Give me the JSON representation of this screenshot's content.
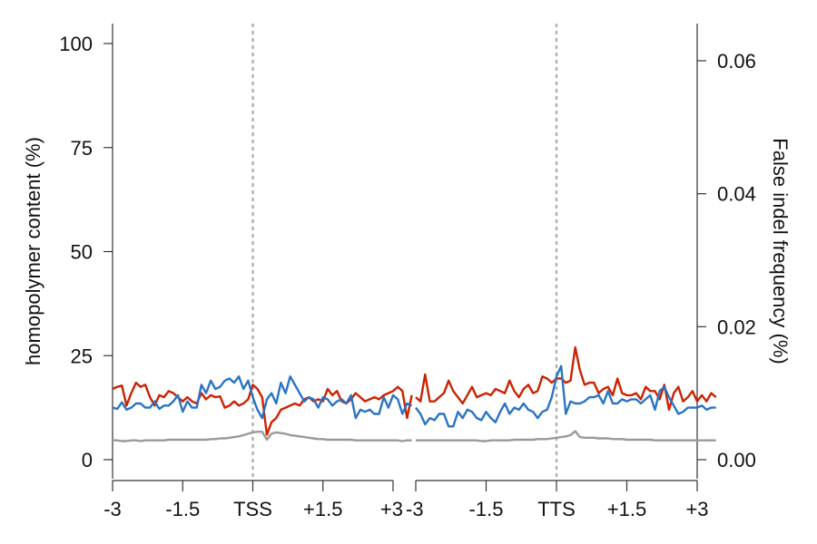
{
  "chart_data": {
    "type": "line",
    "ylabel_left": "homopolymer content (%)",
    "ylabel_right": "False indel frequency (%)",
    "ylim_left": [
      0,
      100
    ],
    "yticks_left": [
      0,
      25,
      50,
      75,
      100
    ],
    "ylim_right": [
      0,
      0.06
    ],
    "yticks_right": [
      "0.00",
      "0.02",
      "0.04",
      "0.06"
    ],
    "grid": false,
    "legend": "none",
    "colors": {
      "red": "#cc2200",
      "blue": "#2a74c4",
      "gray": "#999999",
      "marker": "#b0b0b0"
    },
    "panels": [
      {
        "name": "TSS",
        "xlim": [
          -3,
          3
        ],
        "xticks": [
          -3,
          -1.5,
          0,
          1.5,
          3
        ],
        "xtick_labels": [
          "-3",
          "-1.5",
          "TSS",
          "+1.5",
          "+3"
        ],
        "marker": 0,
        "series": [
          {
            "color": "red",
            "axis": "left",
            "x_start": -3,
            "x_step": 0.1,
            "values": [
              17,
              17.5,
              17.8,
              13,
              16,
              18.5,
              17.5,
              18,
              15,
              13,
              15.5,
              15,
              16.5,
              16,
              15,
              14,
              15,
              14,
              13.5,
              16,
              14.5,
              15.5,
              15,
              15.2,
              12.5,
              13,
              14,
              13,
              13.5,
              14.5,
              18,
              17,
              15,
              6,
              9,
              10,
              12,
              12.5,
              13,
              13.5,
              13,
              14.5,
              15,
              14,
              14.5,
              14,
              17,
              15.5,
              16.5,
              14,
              13.5,
              14.5,
              16,
              15,
              14,
              14.5,
              15,
              14.5,
              15.5,
              16,
              16.5,
              17.5,
              16.5,
              10,
              15.5
            ]
          },
          {
            "color": "blue",
            "axis": "left",
            "x_start": -3,
            "x_step": 0.1,
            "values": [
              12.5,
              12.2,
              13.8,
              12,
              12.5,
              13.5,
              13.5,
              12.5,
              12.5,
              14,
              12.2,
              13,
              13,
              14,
              15.5,
              11.5,
              14,
              12.5,
              12.5,
              18,
              16,
              19,
              17,
              17.5,
              19,
              19.5,
              18.5,
              20,
              17,
              19,
              15,
              12,
              10,
              14.5,
              16,
              13.5,
              18.5,
              16,
              20,
              18,
              16,
              14,
              15,
              14.5,
              12.5,
              15,
              14.5,
              13,
              14,
              14.5,
              13.5,
              15.5,
              10,
              12,
              11.5,
              12,
              11,
              11,
              15,
              12.5,
              15.5,
              14.5,
              11,
              13.5,
              13
            ]
          },
          {
            "color": "gray",
            "axis": "right",
            "x_start": -3,
            "x_step": 0.1,
            "values": [
              0.0029,
              0.0029,
              0.0028,
              0.0028,
              0.0029,
              0.0029,
              0.0028,
              0.0029,
              0.0029,
              0.0029,
              0.0029,
              0.0029,
              0.003,
              0.003,
              0.003,
              0.003,
              0.003,
              0.003,
              0.003,
              0.003,
              0.003,
              0.0031,
              0.0031,
              0.0032,
              0.0032,
              0.0033,
              0.0034,
              0.0035,
              0.0037,
              0.0039,
              0.0041,
              0.0042,
              0.0042,
              0.003,
              0.0039,
              0.0041,
              0.004,
              0.0039,
              0.0037,
              0.0036,
              0.0035,
              0.0034,
              0.0033,
              0.0032,
              0.0031,
              0.0031,
              0.003,
              0.003,
              0.003,
              0.003,
              0.003,
              0.003,
              0.0029,
              0.0029,
              0.0029,
              0.0029,
              0.0029,
              0.0029,
              0.0029,
              0.0029,
              0.0029,
              0.0029,
              0.0028,
              0.0029,
              0.0029
            ]
          }
        ]
      },
      {
        "name": "TTS",
        "xlim": [
          -3,
          3
        ],
        "xticks": [
          -3,
          -1.5,
          0,
          1.5,
          3
        ],
        "xtick_labels": [
          "-3",
          "-1.5",
          "TTS",
          "+1.5",
          "+3"
        ],
        "marker": 0,
        "series": [
          {
            "color": "red",
            "axis": "left",
            "x_start": -3,
            "x_step": 0.1,
            "values": [
              15,
              14,
              20.5,
              14,
              14,
              15,
              16,
              19,
              16.5,
              15,
              13.5,
              15.5,
              17.5,
              15,
              15.5,
              16,
              15.5,
              17,
              16.5,
              16,
              19,
              16.5,
              15,
              17,
              18,
              16,
              16.5,
              20,
              19.5,
              18.5,
              19.5,
              19.5,
              18.5,
              19,
              27,
              21.5,
              18,
              18.5,
              18.5,
              16,
              17,
              17.5,
              15.5,
              19.5,
              16,
              15.5,
              15.5,
              16,
              14.5,
              17.5,
              16.5,
              16.5,
              14.5,
              18,
              12,
              16,
              17.5,
              14,
              15,
              16.5,
              14,
              15.5,
              14,
              16,
              15
            ]
          },
          {
            "color": "blue",
            "axis": "left",
            "x_start": -3,
            "x_step": 0.1,
            "values": [
              12.5,
              11,
              8.5,
              10,
              9.5,
              11,
              11,
              8,
              8,
              11.5,
              10,
              12,
              11.5,
              10,
              9.5,
              11.5,
              10,
              9,
              11.5,
              13.5,
              11,
              12.5,
              12,
              13.5,
              12,
              11.5,
              10,
              11.5,
              12,
              15,
              20,
              22.5,
              11,
              14,
              13.5,
              13.5,
              14,
              15,
              15,
              15.5,
              13.5,
              16.5,
              13.5,
              13.5,
              14.5,
              14,
              14.5,
              14.5,
              13.5,
              14.5,
              15.5,
              12,
              16.5,
              17.5,
              15,
              13,
              11,
              11.5,
              12.5,
              12.5,
              12.5,
              13,
              12,
              12.5,
              12.5
            ]
          },
          {
            "color": "gray",
            "axis": "right",
            "x_start": -3,
            "x_step": 0.1,
            "values": [
              0.0029,
              0.0029,
              0.0029,
              0.0029,
              0.0029,
              0.0029,
              0.0029,
              0.0029,
              0.0029,
              0.0029,
              0.0029,
              0.0029,
              0.0029,
              0.0029,
              0.0028,
              0.0028,
              0.0029,
              0.0029,
              0.0029,
              0.0029,
              0.0029,
              0.003,
              0.003,
              0.003,
              0.003,
              0.003,
              0.0031,
              0.0031,
              0.0031,
              0.0032,
              0.0033,
              0.0034,
              0.0035,
              0.0037,
              0.0043,
              0.0034,
              0.0033,
              0.0033,
              0.0033,
              0.0032,
              0.0032,
              0.0032,
              0.0031,
              0.0031,
              0.0031,
              0.003,
              0.003,
              0.003,
              0.003,
              0.003,
              0.003,
              0.0029,
              0.0029,
              0.0029,
              0.0029,
              0.0029,
              0.0029,
              0.0029,
              0.0029,
              0.0029,
              0.0029,
              0.0029,
              0.0029,
              0.0029,
              0.0029
            ]
          }
        ]
      }
    ]
  }
}
